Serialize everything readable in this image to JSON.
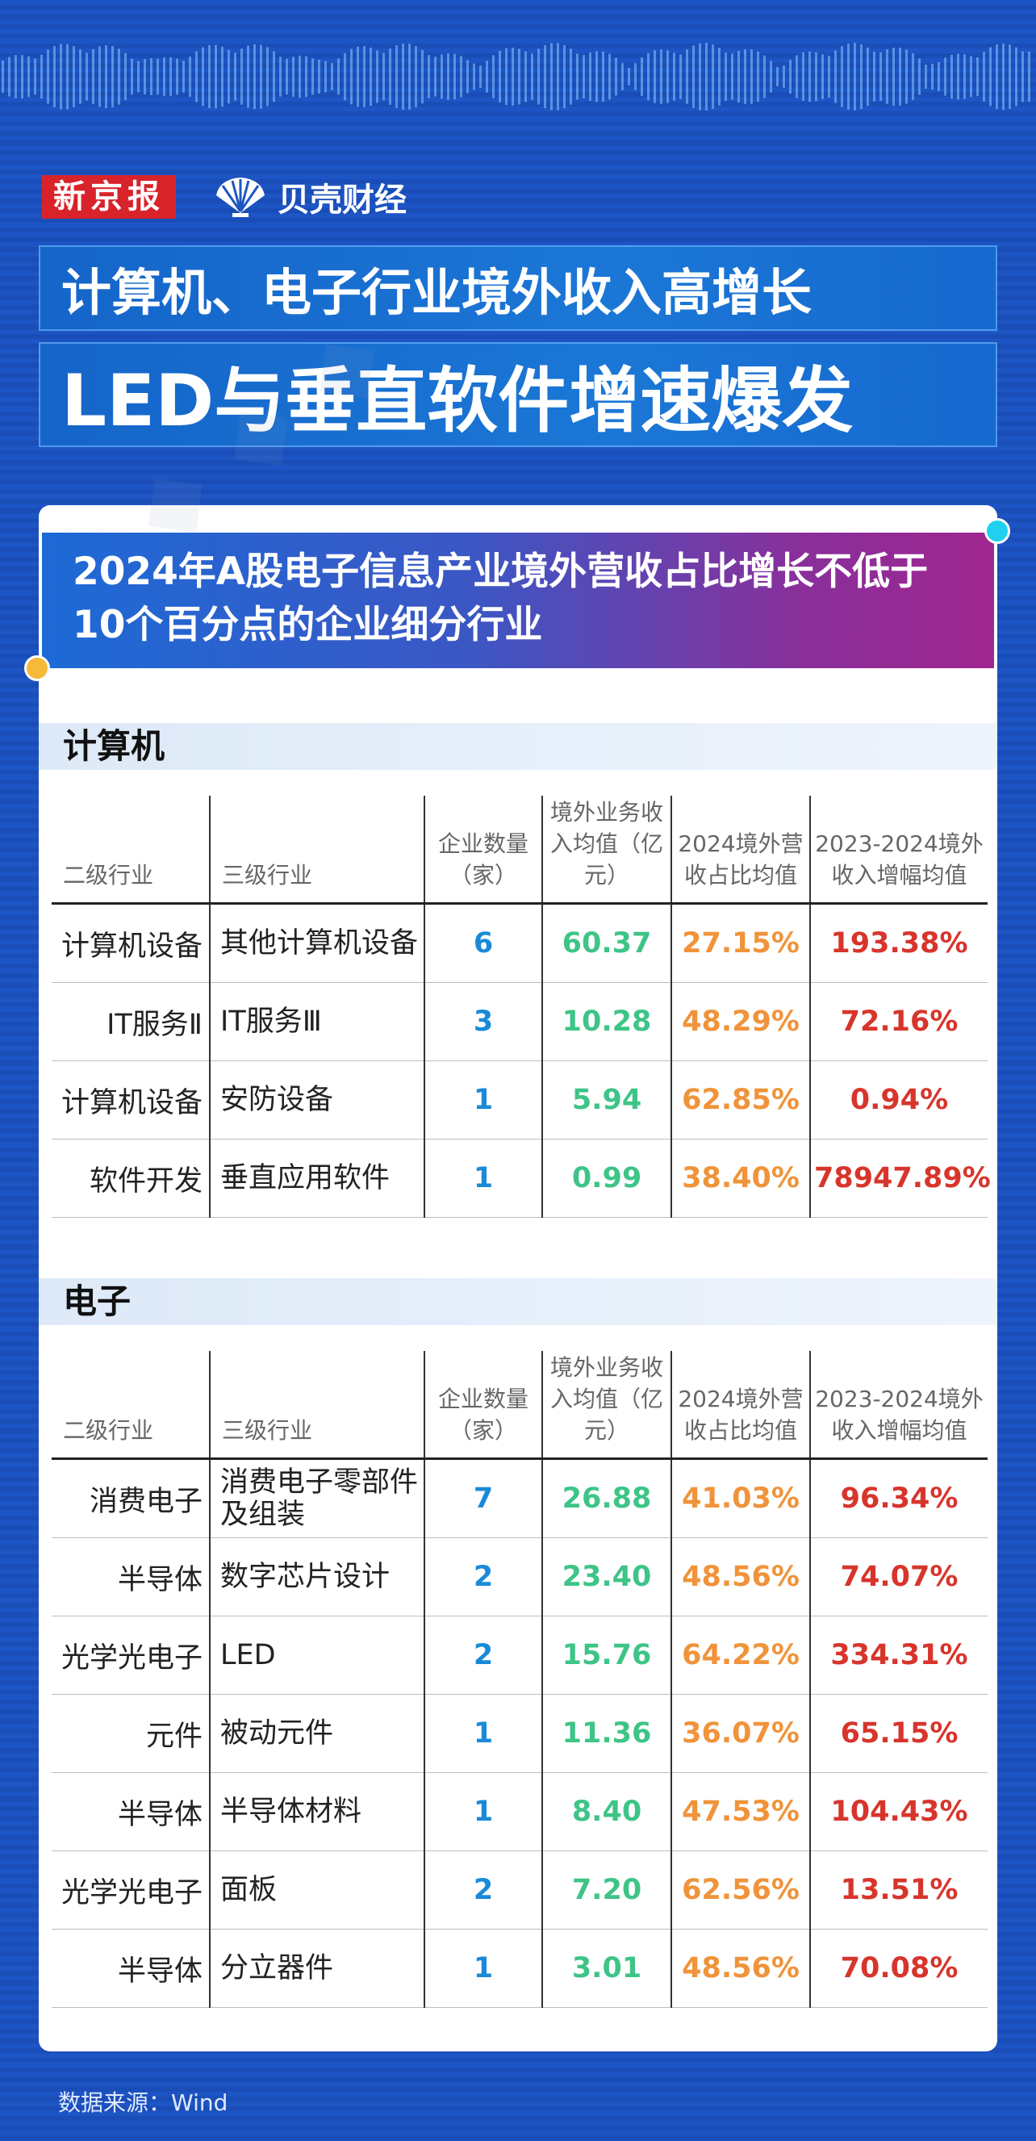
{
  "brand": {
    "xjb": "新京报",
    "beike": "贝壳财经"
  },
  "title": {
    "line1": "计算机、电子行业境外收入高增长",
    "line2": "LED与垂直软件增速爆发"
  },
  "card": {
    "heading": "2024年A股电子信息产业境外营收占比增长不低于10个百分点的企业细分行业"
  },
  "headers": {
    "level2": "二级行业",
    "level3": "三级行业",
    "count": "企业数量（家）",
    "revenue": "境外业务收入均值（亿元）",
    "share": "2024境外营收占比均值",
    "growth": "2023-2024境外收入增幅均值"
  },
  "sections": [
    {
      "label": "计算机",
      "rows": [
        {
          "l2": "计算机设备",
          "l3": "其他计算机设备",
          "count": "6",
          "revenue": "60.37",
          "share": "27.15%",
          "growth": "193.38%"
        },
        {
          "l2": "IT服务Ⅱ",
          "l3": "IT服务Ⅲ",
          "count": "3",
          "revenue": "10.28",
          "share": "48.29%",
          "growth": "72.16%"
        },
        {
          "l2": "计算机设备",
          "l3": "安防设备",
          "count": "1",
          "revenue": "5.94",
          "share": "62.85%",
          "growth": "0.94%"
        },
        {
          "l2": "软件开发",
          "l3": "垂直应用软件",
          "count": "1",
          "revenue": "0.99",
          "share": "38.40%",
          "growth": "78947.89%"
        }
      ]
    },
    {
      "label": "电子",
      "rows": [
        {
          "l2": "消费电子",
          "l3": "消费电子零部件及组装",
          "count": "7",
          "revenue": "26.88",
          "share": "41.03%",
          "growth": "96.34%"
        },
        {
          "l2": "半导体",
          "l3": "数字芯片设计",
          "count": "2",
          "revenue": "23.40",
          "share": "48.56%",
          "growth": "74.07%"
        },
        {
          "l2": "光学光电子",
          "l3": "LED",
          "count": "2",
          "revenue": "15.76",
          "share": "64.22%",
          "growth": "334.31%"
        },
        {
          "l2": "元件",
          "l3": "被动元件",
          "count": "1",
          "revenue": "11.36",
          "share": "36.07%",
          "growth": "65.15%"
        },
        {
          "l2": "半导体",
          "l3": "半导体材料",
          "count": "1",
          "revenue": "8.40",
          "share": "47.53%",
          "growth": "104.43%"
        },
        {
          "l2": "光学光电子",
          "l3": "面板",
          "count": "2",
          "revenue": "7.20",
          "share": "62.56%",
          "growth": "13.51%"
        },
        {
          "l2": "半导体",
          "l3": "分立器件",
          "count": "1",
          "revenue": "3.01",
          "share": "48.56%",
          "growth": "70.08%"
        }
      ]
    }
  ],
  "source": "数据来源：Wind",
  "colors": {
    "count": "#1a8ad8",
    "revenue": "#3ec487",
    "share": "#f0933a",
    "growth": "#d7352c"
  }
}
